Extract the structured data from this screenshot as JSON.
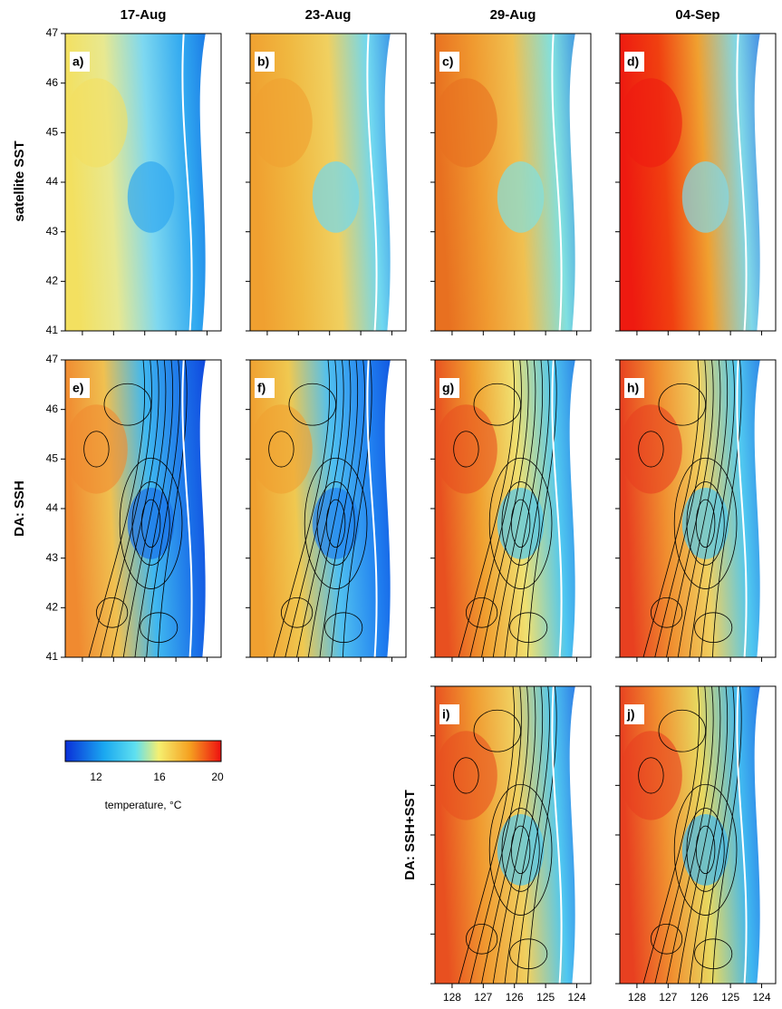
{
  "columns": [
    "17-Aug",
    "23-Aug",
    "29-Aug",
    "04-Sep"
  ],
  "rows": [
    "satellite SST",
    "DA: SSH",
    "DA: SSH+SST"
  ],
  "panels": [
    {
      "label": "a)"
    },
    {
      "label": "b)"
    },
    {
      "label": "c)"
    },
    {
      "label": "d)"
    },
    {
      "label": "e)"
    },
    {
      "label": "f)"
    },
    {
      "label": "g)"
    },
    {
      "label": "h)"
    },
    {
      "label": "i)"
    },
    {
      "label": "j)"
    }
  ],
  "yticks": [
    47,
    46,
    45,
    44,
    43,
    42,
    41
  ],
  "xticks": [
    128,
    127,
    126,
    125,
    124
  ],
  "colorbar": {
    "ticks": [
      12,
      16,
      20
    ],
    "label": "temperature, °C"
  }
}
